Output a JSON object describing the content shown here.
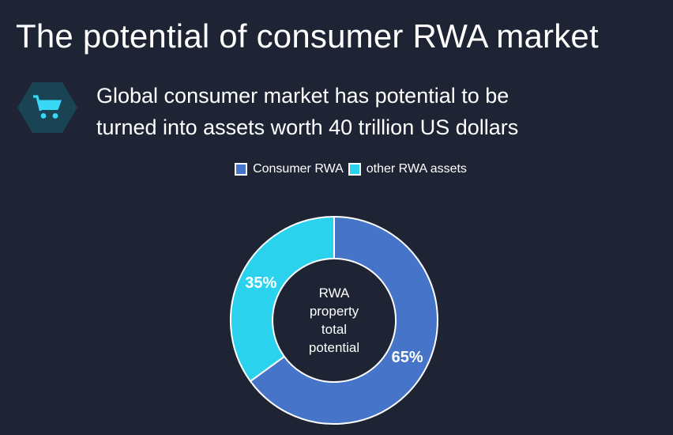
{
  "slide": {
    "title": "The potential of consumer RWA market",
    "subtitle": {
      "line1": "Global consumer market has potential to be",
      "line2": "turned into assets worth 40 trillion US dollars"
    },
    "icon": "shopping-cart-icon"
  },
  "colors": {
    "background": "#1e2433",
    "text": "#ffffff",
    "hexagon_fill": "#1a4354",
    "cart_cyan": "#38d8f6",
    "donut_stroke": "#ffffff"
  },
  "chart_data": {
    "type": "pie",
    "subtype": "donut",
    "title": "RWA property total potential",
    "categories": [
      "Consumer RWA",
      "other RWA assets"
    ],
    "values": [
      65,
      35
    ],
    "data_labels": [
      "65%",
      "35%"
    ],
    "series_colors": [
      "#4574c8",
      "#2bd2ee"
    ],
    "center_label": [
      "RWA",
      "property",
      "total",
      "potential"
    ],
    "legend": {
      "position": "top",
      "entries": [
        {
          "label": "Consumer RWA",
          "color": "#4574c8"
        },
        {
          "label": "other RWA assets",
          "color": "#2bd2ee"
        }
      ]
    },
    "start_angle_deg": 0,
    "direction": "clockwise"
  }
}
